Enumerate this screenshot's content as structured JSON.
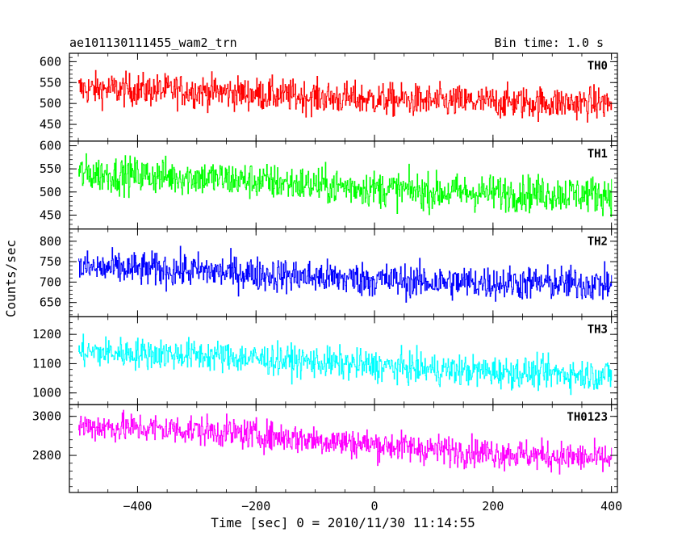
{
  "header": {
    "title": "ae101130111455_wam2_trn",
    "bin_time": "Bin time: 1.0 s"
  },
  "chart_data": {
    "type": "line",
    "x_label": "Time [sec] 0 = 2010/11/30 11:14:55",
    "y_label": "Counts/sec",
    "xlim": [
      -515,
      410
    ],
    "x_ticks": [
      -400,
      -200,
      0,
      200,
      400
    ],
    "x_tick_labels": [
      "−400",
      "−200",
      "0",
      "200",
      "400"
    ],
    "x_range": [
      -500,
      400
    ],
    "grid": false,
    "panels": [
      {
        "name": "TH0",
        "color": "#ff0000",
        "ylim": [
          410,
          620
        ],
        "yticks": [
          450,
          500,
          550,
          600
        ],
        "trend": [
          [
            -500,
            535
          ],
          [
            -300,
            530
          ],
          [
            -100,
            515
          ],
          [
            100,
            505
          ],
          [
            400,
            500
          ]
        ],
        "noise": 28
      },
      {
        "name": "TH1",
        "color": "#00ff00",
        "ylim": [
          420,
          610
        ],
        "yticks": [
          450,
          500,
          550,
          600
        ],
        "trend": [
          [
            -500,
            540
          ],
          [
            -300,
            532
          ],
          [
            -100,
            515
          ],
          [
            100,
            500
          ],
          [
            400,
            495
          ]
        ],
        "noise": 28
      },
      {
        "name": "TH2",
        "color": "#0000ff",
        "ylim": [
          615,
          830
        ],
        "yticks": [
          650,
          700,
          750,
          800
        ],
        "trend": [
          [
            -500,
            735
          ],
          [
            -300,
            728
          ],
          [
            -100,
            712
          ],
          [
            100,
            700
          ],
          [
            400,
            695
          ]
        ],
        "noise": 30
      },
      {
        "name": "TH3",
        "color": "#00ffff",
        "ylim": [
          960,
          1260
        ],
        "yticks": [
          1000,
          1100,
          1200
        ],
        "trend": [
          [
            -500,
            1140
          ],
          [
            -300,
            1130
          ],
          [
            -100,
            1105
          ],
          [
            100,
            1080
          ],
          [
            400,
            1060
          ]
        ],
        "noise": 38
      },
      {
        "name": "TH0123",
        "color": "#ff00ff",
        "ylim": [
          2610,
          3060
        ],
        "yticks": [
          2800,
          3000
        ],
        "trend": [
          [
            -500,
            2950
          ],
          [
            -300,
            2930
          ],
          [
            -100,
            2880
          ],
          [
            100,
            2830
          ],
          [
            400,
            2780
          ]
        ],
        "noise": 55
      }
    ]
  }
}
